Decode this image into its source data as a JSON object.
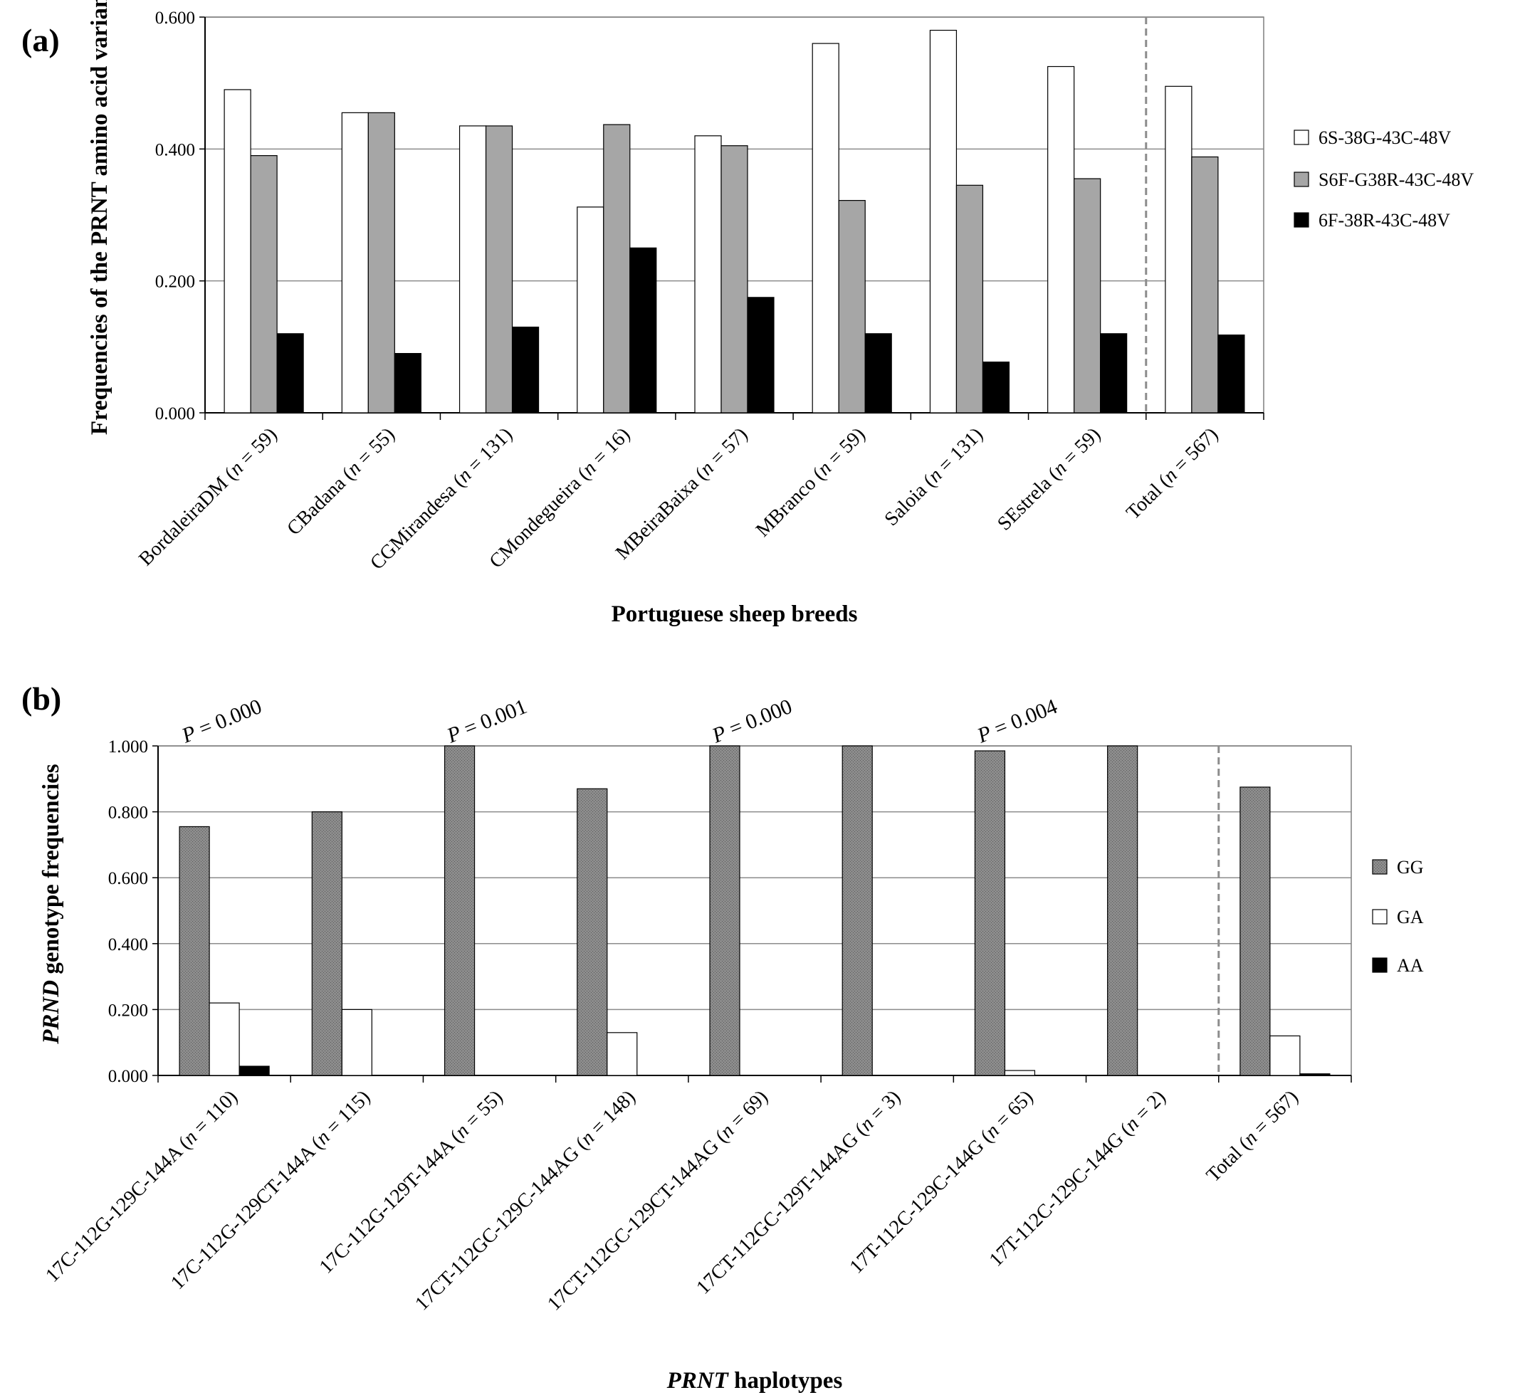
{
  "chart_data": [
    {
      "panel_label": "(a)",
      "type": "bar",
      "xlabel": "Portuguese sheep breeds",
      "ylabel": "Frequencies of the PRNT amino acid variants",
      "ylim": [
        0,
        0.6
      ],
      "yticks": [
        "0.000",
        "0.200",
        "0.400",
        "0.600"
      ],
      "grid": true,
      "legend_position": "right",
      "categories": [
        {
          "name": "BordaleiraDM",
          "n": "59"
        },
        {
          "name": "CBadana",
          "n": "55"
        },
        {
          "name": "CGMirandesa",
          "n": "131"
        },
        {
          "name": "CMondegueira",
          "n": "16"
        },
        {
          "name": "MBeiraBaixa",
          "n": "57"
        },
        {
          "name": "MBranco",
          "n": "59"
        },
        {
          "name": "Saloia",
          "n": "131"
        },
        {
          "name": "SEstrela",
          "n": "59"
        },
        {
          "name": "Total",
          "n": "567"
        }
      ],
      "series": [
        {
          "name": "6S-38G-43C-48V",
          "color": "#ffffff",
          "values": [
            0.49,
            0.455,
            0.435,
            0.312,
            0.42,
            0.56,
            0.58,
            0.525,
            0.495
          ]
        },
        {
          "name": "S6F-G38R-43C-48V",
          "color": "#a6a6a6",
          "values": [
            0.39,
            0.455,
            0.435,
            0.437,
            0.405,
            0.322,
            0.345,
            0.355,
            0.388
          ]
        },
        {
          "name": "6F-38R-43C-48V",
          "color": "#000000",
          "values": [
            0.12,
            0.09,
            0.13,
            0.25,
            0.175,
            0.12,
            0.077,
            0.12,
            0.118
          ]
        }
      ],
      "dashed_separator_before": "Total",
      "annotations": []
    },
    {
      "panel_label": "(b)",
      "type": "bar",
      "xlabel": {
        "italic": "PRNT",
        "rest": " haplotypes"
      },
      "ylabel": {
        "italic": "PRND",
        "rest": " genotype frequencies"
      },
      "ylim": [
        0,
        1
      ],
      "yticks": [
        "0.000",
        "0.200",
        "0.400",
        "0.600",
        "0.800",
        "1.000"
      ],
      "grid": true,
      "legend_position": "right",
      "categories": [
        {
          "name": "17C-112G-129C-144A",
          "n": "110"
        },
        {
          "name": "17C-112G-129CT-144A",
          "n": "115"
        },
        {
          "name": "17C-112G-129T-144A",
          "n": "55"
        },
        {
          "name": "17CT-112GC-129C-144AG",
          "n": "148"
        },
        {
          "name": "17CT-112GC-129CT-144AG",
          "n": "69"
        },
        {
          "name": "17CT-112GC-129T-144AG",
          "n": "3"
        },
        {
          "name": "17T-112C-129C-144G",
          "n": "65"
        },
        {
          "name": "17T-112C-129C-144G",
          "n": "2"
        },
        {
          "name": "Total",
          "n": "567"
        }
      ],
      "series": [
        {
          "name": "GG",
          "color": "#7a7a7a",
          "values": [
            0.755,
            0.8,
            1.0,
            0.87,
            1.0,
            1.0,
            0.985,
            1.0,
            0.875
          ]
        },
        {
          "name": "GA",
          "color": "#ffffff",
          "values": [
            0.22,
            0.2,
            0.0,
            0.13,
            0.0,
            0.0,
            0.015,
            0.0,
            0.12
          ]
        },
        {
          "name": "AA",
          "color": "#000000",
          "values": [
            0.028,
            0.0,
            0.0,
            0.0,
            0.0,
            0.0,
            0.0,
            0.0,
            0.005
          ]
        }
      ],
      "dashed_separator_before": "Total",
      "annotations": [
        {
          "text": "P = 0.000",
          "category_index": 0.5
        },
        {
          "text": "P = 0.001",
          "category_index": 2.5
        },
        {
          "text": "P = 0.000",
          "category_index": 4.5
        },
        {
          "text": "P = 0.004",
          "category_index": 6.5
        }
      ]
    }
  ]
}
